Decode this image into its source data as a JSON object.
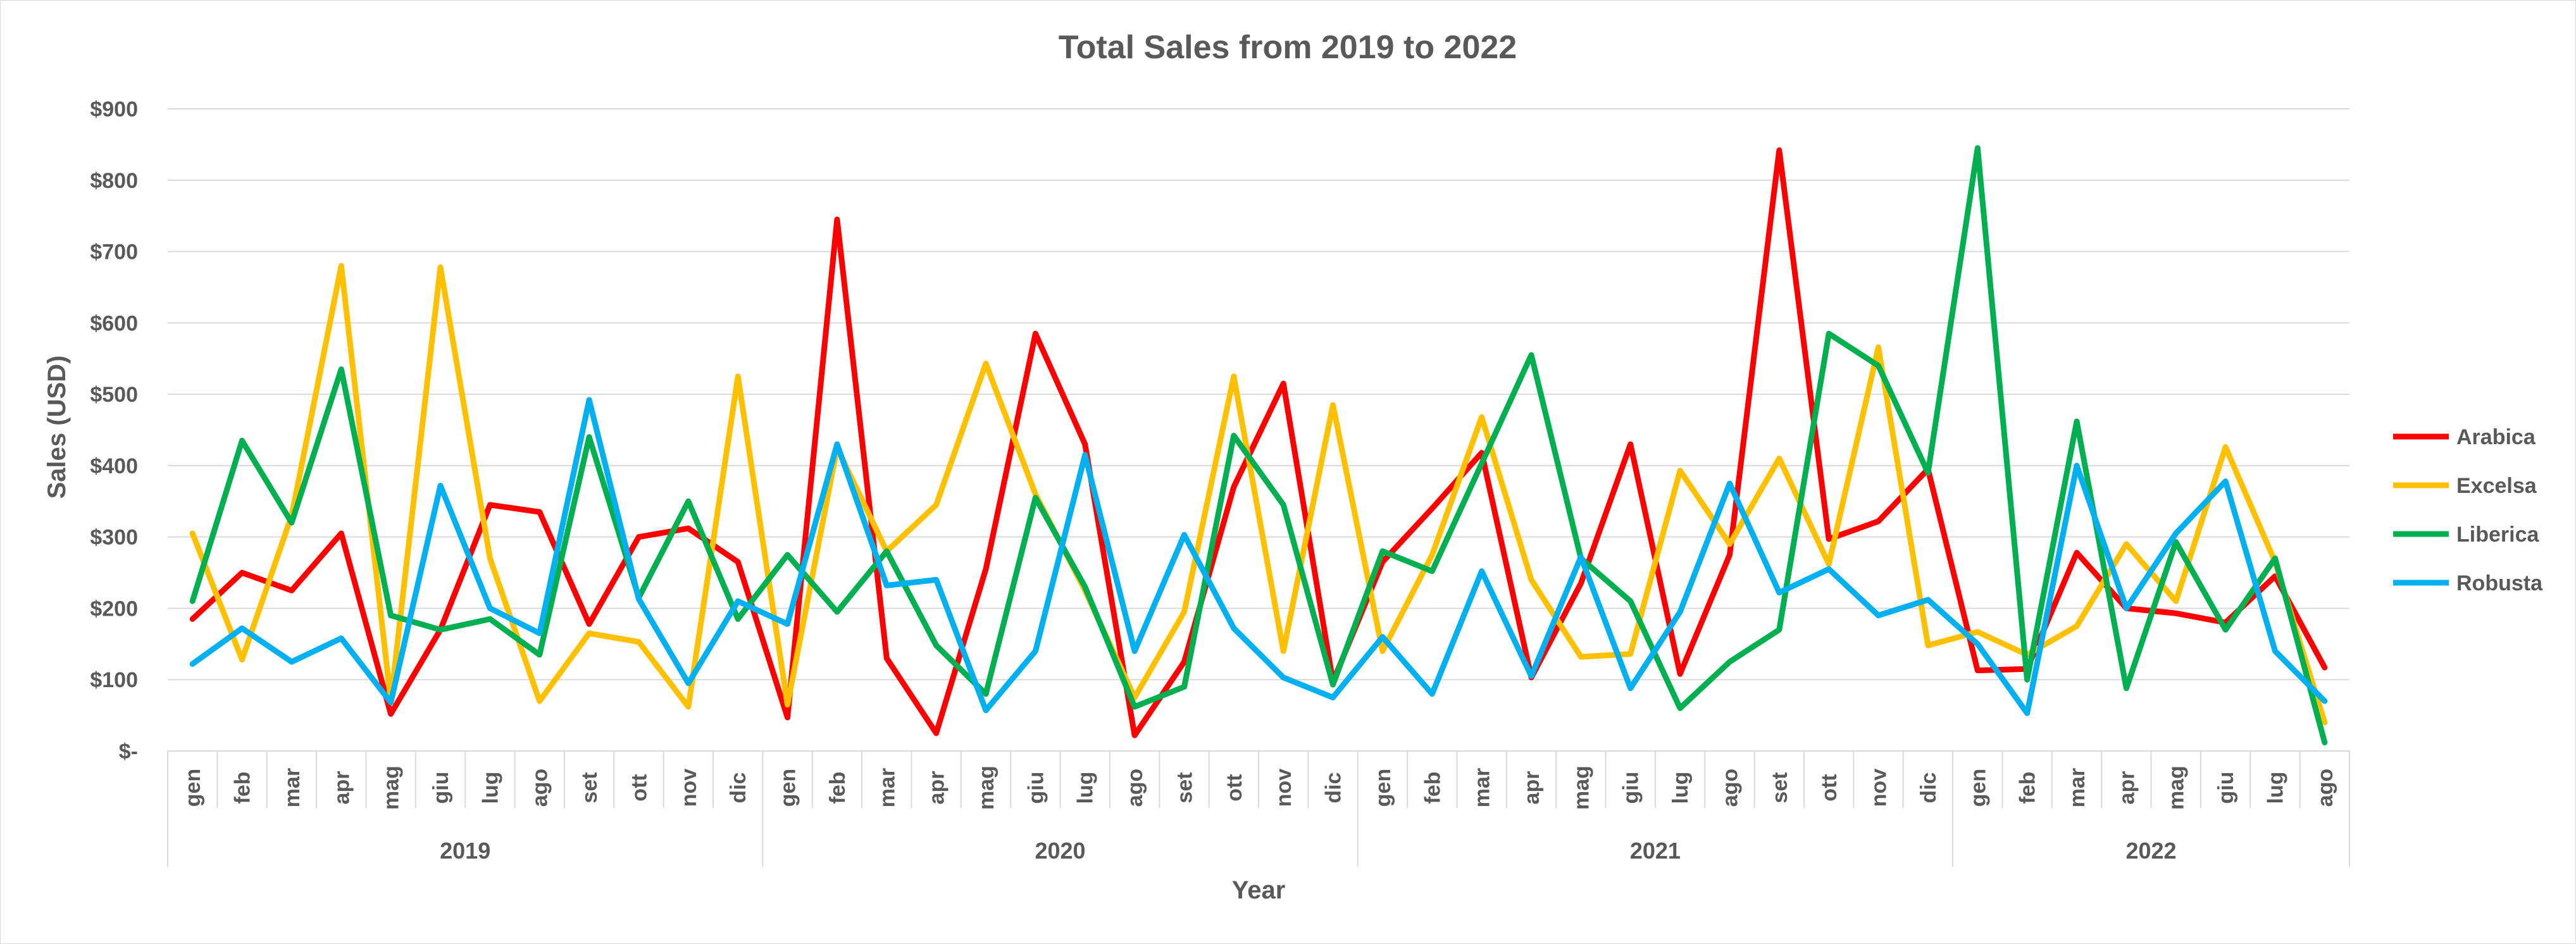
{
  "chart_data": {
    "type": "line",
    "title": "Total Sales from 2019 to 2022",
    "xlabel": "Year",
    "ylabel": "Sales (USD)",
    "ylim": [
      0,
      900
    ],
    "ytick_values": [
      0,
      100,
      200,
      300,
      400,
      500,
      600,
      700,
      800,
      900
    ],
    "ytick_labels": [
      "$-",
      "$100",
      "$200",
      "$300",
      "$400",
      "$500",
      "$600",
      "$700",
      "$800",
      "$900"
    ],
    "grid": true,
    "legend_position": "right",
    "year_groups": [
      {
        "label": "2019",
        "months": [
          "gen",
          "feb",
          "mar",
          "apr",
          "mag",
          "giu",
          "lug",
          "ago",
          "set",
          "ott",
          "nov",
          "dic"
        ]
      },
      {
        "label": "2020",
        "months": [
          "gen",
          "feb",
          "mar",
          "apr",
          "mag",
          "giu",
          "lug",
          "ago",
          "set",
          "ott",
          "nov",
          "dic"
        ]
      },
      {
        "label": "2021",
        "months": [
          "gen",
          "feb",
          "mar",
          "apr",
          "mag",
          "giu",
          "lug",
          "ago",
          "set",
          "ott",
          "nov",
          "dic"
        ]
      },
      {
        "label": "2022",
        "months": [
          "gen",
          "feb",
          "mar",
          "apr",
          "mag",
          "giu",
          "lug",
          "ago"
        ]
      }
    ],
    "series": [
      {
        "name": "Arabica",
        "color": "#ff0000",
        "values": [
          185,
          250,
          225,
          305,
          52,
          170,
          345,
          335,
          178,
          300,
          312,
          265,
          47,
          745,
          130,
          25,
          255,
          585,
          430,
          22,
          125,
          370,
          515,
          97,
          265,
          340,
          418,
          103,
          235,
          430,
          108,
          275,
          842,
          297,
          322,
          395,
          113,
          115,
          278,
          200,
          193,
          180,
          245,
          117
        ]
      },
      {
        "name": "Excelsa",
        "color": "#ffc000",
        "values": [
          305,
          128,
          330,
          680,
          70,
          678,
          270,
          70,
          165,
          153,
          62,
          525,
          65,
          425,
          280,
          345,
          543,
          360,
          225,
          75,
          195,
          525,
          140,
          485,
          140,
          275,
          468,
          240,
          132,
          136,
          393,
          290,
          410,
          262,
          566,
          148,
          167,
          135,
          175,
          290,
          210,
          426,
          265,
          40
        ]
      },
      {
        "name": "Liberica",
        "color": "#00b050",
        "values": [
          210,
          435,
          320,
          535,
          190,
          170,
          185,
          135,
          440,
          215,
          350,
          185,
          275,
          195,
          280,
          148,
          80,
          355,
          230,
          62,
          90,
          442,
          345,
          93,
          280,
          252,
          403,
          555,
          270,
          210,
          60,
          125,
          170,
          585,
          540,
          390,
          845,
          100,
          462,
          88,
          293,
          170,
          270,
          12
        ]
      },
      {
        "name": "Robusta",
        "color": "#00b0f0",
        "values": [
          122,
          172,
          125,
          158,
          68,
          372,
          200,
          165,
          492,
          213,
          95,
          210,
          178,
          430,
          232,
          240,
          57,
          140,
          415,
          140,
          303,
          172,
          103,
          75,
          160,
          80,
          252,
          105,
          272,
          88,
          195,
          375,
          222,
          255,
          190,
          212,
          150,
          53,
          400,
          200,
          305,
          378,
          140,
          70
        ]
      }
    ]
  }
}
